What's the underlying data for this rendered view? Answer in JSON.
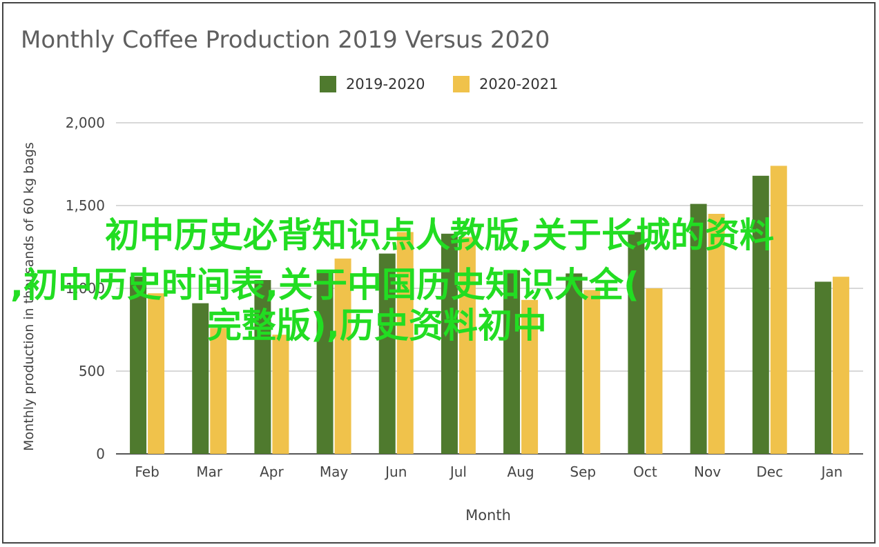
{
  "chart_data": {
    "type": "bar",
    "title": "Monthly Coffee Production 2019 Versus 2020",
    "xlabel": "Month",
    "ylabel": "Monthly production in thousands of 60 kg bags",
    "categories": [
      "Feb",
      "Mar",
      "Apr",
      "May",
      "Jun",
      "Jul",
      "Aug",
      "Sep",
      "Oct",
      "Nov",
      "Dec",
      "Jan"
    ],
    "series": [
      {
        "name": "2019-2020",
        "color": "#4f7a2e",
        "values": [
          1070,
          910,
          1050,
          1100,
          1210,
          1330,
          1110,
          1090,
          1340,
          1510,
          1680,
          1040
        ]
      },
      {
        "name": "2020-2021",
        "color": "#f0c24b",
        "values": [
          970,
          760,
          720,
          1180,
          1340,
          1310,
          930,
          990,
          1000,
          1450,
          1740,
          1070
        ]
      }
    ],
    "ylim": [
      0,
      2000
    ],
    "yticks": [
      0,
      500,
      1000,
      1500,
      2000
    ],
    "ytick_labels": [
      "0",
      "500",
      "1,000",
      "1,500",
      "2,000"
    ],
    "grid": true,
    "legend_position": "top-center"
  },
  "overlay_text": {
    "line1": "初中历史必背知识点人教版,关于长城的资料",
    "line2": ",初中历史时间表,关于中国历史知识大全(",
    "line3": "完整版),历史资料初中"
  }
}
